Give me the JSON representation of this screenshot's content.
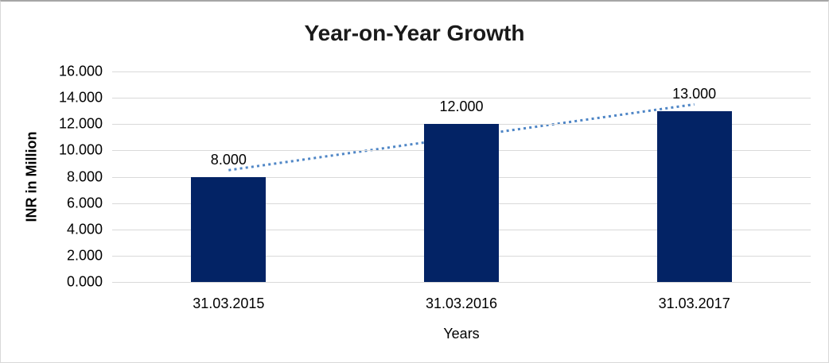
{
  "chart_data": {
    "type": "bar",
    "title": "Year-on-Year Growth",
    "xlabel": "Years",
    "ylabel": "INR in Million",
    "categories": [
      "31.03.2015",
      "31.03.2016",
      "31.03.2017"
    ],
    "values": [
      8,
      12,
      13
    ],
    "value_labels": [
      "8.000",
      "12.000",
      "13.000"
    ],
    "ylim": [
      0,
      16
    ],
    "ytick_step": 2,
    "ytick_labels": [
      "0.000",
      "2.000",
      "4.000",
      "6.000",
      "8.000",
      "10.000",
      "12.000",
      "14.000",
      "16.000"
    ],
    "grid": "horizontal-only",
    "legend_position": "none",
    "colors": {
      "bar": "#032365",
      "trendline": "#4f86c6",
      "gridline": "#d9d9d9",
      "text": "#000000",
      "title_text": "#1a1a1a",
      "background": "#ffffff"
    },
    "trendline": {
      "type": "linear",
      "style": "dotted",
      "fit_values_at_categories": [
        8.5,
        11.0,
        13.5
      ]
    }
  }
}
